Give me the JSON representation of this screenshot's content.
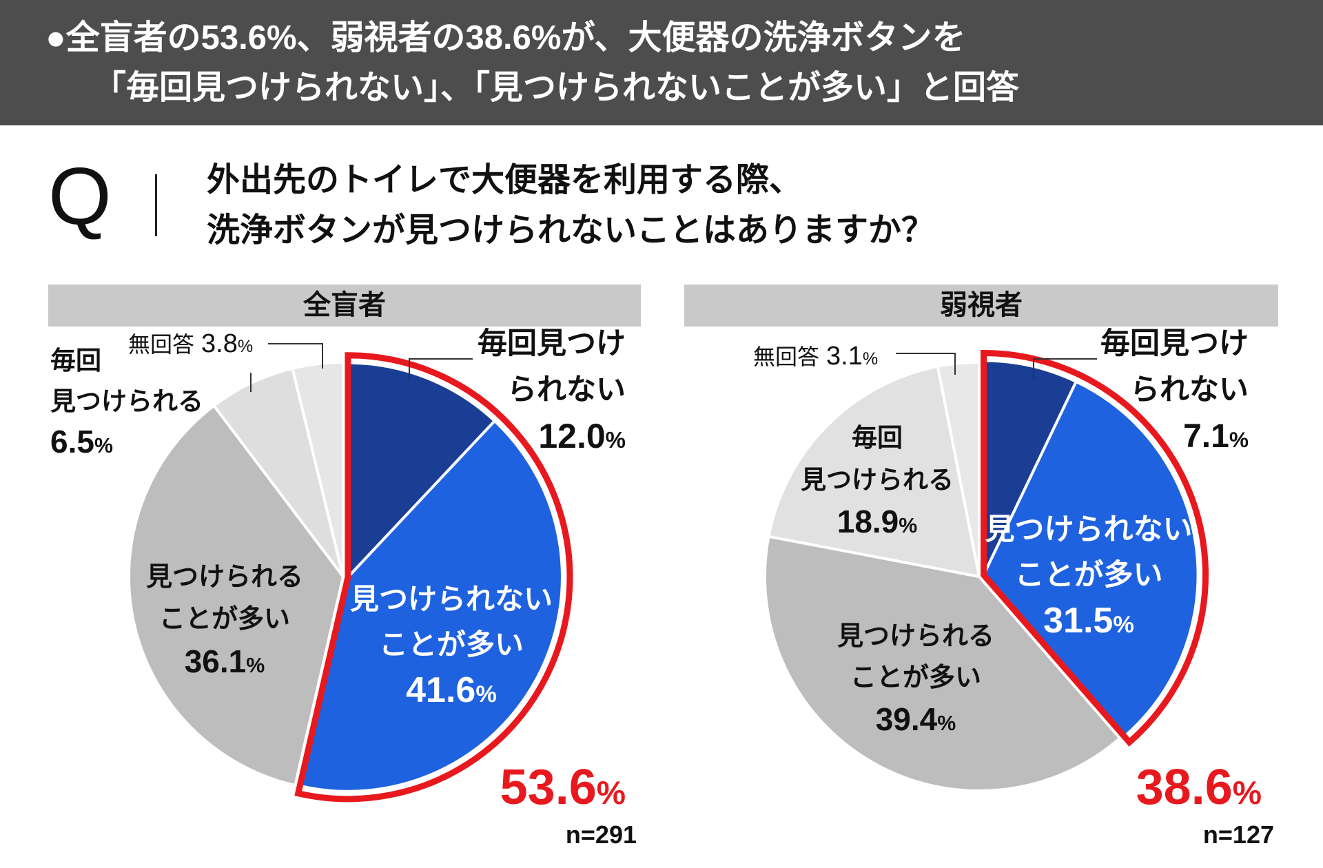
{
  "header": {
    "line1": "●全盲者の53.6%、弱視者の38.6%が、大便器の洗浄ボタンを",
    "line2": "「毎回見つけられない」、「見つけられないことが多い」と回答"
  },
  "question": {
    "mark": "Q",
    "line1": "外出先のトイレで大便器を利用する際、",
    "line2": "洗浄ボタンが見つけられないことはありますか？"
  },
  "theme": {
    "header_background": "#4d4d4d",
    "header_text": "#ffffff",
    "panel_header_background": "#c9c9c9",
    "separator": "#ffffff"
  },
  "chart_data": [
    {
      "type": "pie",
      "title": "全盲者",
      "sample_size": "n=291",
      "highlight_total": "53.6%",
      "highlight_color": "#e8191e",
      "slices": [
        {
          "label_lines": [
            "毎回見つけ",
            "られない"
          ],
          "value": 12.0,
          "value_label": "12.0%",
          "color": "#1a3e93",
          "highlighted": true
        },
        {
          "label_lines": [
            "見つけられない",
            "ことが多い"
          ],
          "value": 41.6,
          "value_label": "41.6%",
          "color": "#1f62df",
          "highlighted": true
        },
        {
          "label_lines": [
            "見つけられる",
            "ことが多い"
          ],
          "value": 36.1,
          "value_label": "36.1%",
          "color": "#bdbdbd",
          "highlighted": false
        },
        {
          "label_lines": [
            "毎回",
            "見つけられる"
          ],
          "value": 6.5,
          "value_label": "6.5%",
          "color": "#dedede",
          "highlighted": false
        },
        {
          "label_lines": [
            "無回答"
          ],
          "value": 3.8,
          "value_label": "3.8%",
          "color": "#e6e6e6",
          "highlighted": false
        }
      ]
    },
    {
      "type": "pie",
      "title": "弱視者",
      "sample_size": "n=127",
      "highlight_total": "38.6%",
      "highlight_color": "#e8191e",
      "slices": [
        {
          "label_lines": [
            "毎回見つけ",
            "られない"
          ],
          "value": 7.1,
          "value_label": "7.1%",
          "color": "#1a3e93",
          "highlighted": true
        },
        {
          "label_lines": [
            "見つけられない",
            "ことが多い"
          ],
          "value": 31.5,
          "value_label": "31.5%",
          "color": "#1f62df",
          "highlighted": true
        },
        {
          "label_lines": [
            "見つけられる",
            "ことが多い"
          ],
          "value": 39.4,
          "value_label": "39.4%",
          "color": "#bdbdbd",
          "highlighted": false
        },
        {
          "label_lines": [
            "毎回",
            "見つけられる"
          ],
          "value": 18.9,
          "value_label": "18.9%",
          "color": "#e1e1e1",
          "highlighted": false
        },
        {
          "label_lines": [
            "無回答"
          ],
          "value": 3.1,
          "value_label": "3.1%",
          "color": "#e8e8e8",
          "highlighted": false
        }
      ]
    }
  ]
}
